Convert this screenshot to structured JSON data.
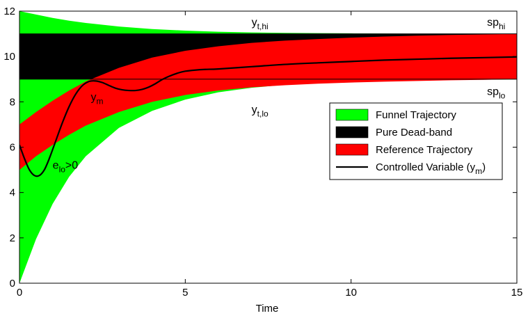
{
  "chart_data": {
    "type": "area",
    "title": "",
    "xlabel": "Time",
    "ylabel": "",
    "xlim": [
      0,
      15
    ],
    "ylim": [
      0,
      12
    ],
    "x_ticks": [
      0,
      5,
      10,
      15
    ],
    "y_ticks": [
      0,
      2,
      4,
      6,
      8,
      10,
      12
    ],
    "grid": false,
    "legend_position": "right, middle",
    "setpoints": {
      "sp_hi": 11,
      "sp_lo": 9
    },
    "series": [
      {
        "name": "Funnel Trajectory",
        "kind": "band",
        "color": "#00ff00",
        "x": [
          0,
          0.5,
          1,
          1.5,
          2,
          3,
          4,
          5,
          6,
          7,
          8,
          9,
          10,
          11,
          12,
          13,
          14,
          15
        ],
        "upper": [
          12,
          11.85,
          11.7,
          11.58,
          11.48,
          11.32,
          11.21,
          11.14,
          11.09,
          11.06,
          11.04,
          11.03,
          11.02,
          11.01,
          11.0,
          11.0,
          11.0,
          11.0
        ],
        "lower": [
          0,
          1.95,
          3.5,
          4.7,
          5.6,
          6.85,
          7.6,
          8.1,
          8.42,
          8.62,
          8.75,
          8.83,
          8.88,
          8.92,
          8.95,
          8.97,
          8.98,
          8.99
        ]
      },
      {
        "name": "Pure Dead-band",
        "kind": "band",
        "color": "#000000",
        "x": [
          0,
          15
        ],
        "upper": [
          11,
          11
        ],
        "lower": [
          9,
          9
        ]
      },
      {
        "name": "Reference Trajectory",
        "kind": "band",
        "color": "#ff0000",
        "x": [
          0,
          0.5,
          1,
          1.5,
          2,
          3,
          4,
          5,
          6,
          7,
          8,
          9,
          10,
          11,
          12,
          13,
          14,
          15
        ],
        "upper": [
          7.0,
          7.55,
          8.05,
          8.5,
          8.9,
          9.5,
          9.95,
          10.25,
          10.45,
          10.6,
          10.7,
          10.77,
          10.83,
          10.88,
          10.92,
          10.95,
          10.97,
          11.0
        ],
        "lower": [
          5.0,
          5.6,
          6.1,
          6.55,
          6.95,
          7.55,
          8.0,
          8.3,
          8.5,
          8.64,
          8.73,
          8.8,
          8.85,
          8.89,
          8.92,
          8.95,
          8.97,
          9.0
        ]
      },
      {
        "name": "Controlled Variable (ym)",
        "kind": "line",
        "color": "#000000",
        "x": [
          0,
          0.15,
          0.3,
          0.45,
          0.6,
          0.75,
          0.9,
          1.1,
          1.3,
          1.5,
          1.7,
          1.9,
          2.1,
          2.3,
          2.5,
          2.7,
          2.9,
          3.1,
          3.3,
          3.5,
          3.7,
          3.9,
          4.1,
          4.3,
          4.5,
          4.8,
          5.0,
          5.3,
          5.6,
          6.0,
          7.0,
          8.0,
          9.0,
          10.0,
          11.0,
          12.0,
          13.0,
          14.0,
          15.0
        ],
        "y": [
          6.1,
          5.5,
          5.0,
          4.75,
          4.75,
          5.0,
          5.5,
          6.3,
          7.1,
          7.8,
          8.35,
          8.72,
          8.9,
          8.92,
          8.85,
          8.72,
          8.6,
          8.53,
          8.5,
          8.5,
          8.55,
          8.65,
          8.8,
          8.98,
          9.12,
          9.28,
          9.35,
          9.4,
          9.43,
          9.45,
          9.55,
          9.65,
          9.72,
          9.78,
          9.84,
          9.88,
          9.92,
          9.95,
          9.98
        ]
      }
    ],
    "annotations": [
      {
        "main": "y",
        "sub": "t,hi",
        "x": 7.0,
        "y": 11.35
      },
      {
        "main": "sp",
        "sub": "hi",
        "x": 14.1,
        "y": 11.35
      },
      {
        "main": "sp",
        "sub": "lo",
        "x": 14.1,
        "y": 8.3
      },
      {
        "main": "y",
        "sub": "t,lo",
        "x": 7.0,
        "y": 7.5
      },
      {
        "main": "y",
        "sub": "m",
        "x": 2.15,
        "y": 8.05
      },
      {
        "main": "e",
        "sub": "lo",
        "suffix": ">0",
        "x": 1.0,
        "y": 5.05
      }
    ]
  },
  "legend": {
    "items": [
      {
        "label": "Funnel Trajectory",
        "color": "#00ff00",
        "kind": "patch"
      },
      {
        "label": "Pure Dead-band",
        "color": "#000000",
        "kind": "patch"
      },
      {
        "label": "Reference Trajectory",
        "color": "#ff0000",
        "kind": "patch"
      },
      {
        "label": "Controlled Variable (y",
        "sub": "m",
        "suffix": ")",
        "color": "#000000",
        "kind": "line"
      }
    ]
  }
}
